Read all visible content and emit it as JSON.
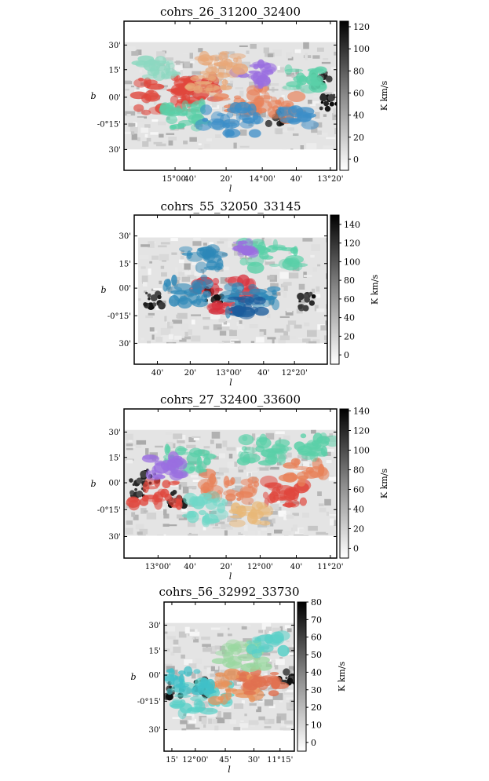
{
  "figure": {
    "colorbar_label": "K km/s",
    "xlabel": "l",
    "ylabel": "b"
  },
  "chart_data": [
    {
      "type": "heatmap",
      "title": "cohrs_26_31200_32400",
      "xlabel": "l",
      "ylabel": "b",
      "x_ticks": [
        "15°00'",
        "40'",
        "20'",
        "14°00'",
        "40'",
        "13°20'"
      ],
      "y_ticks": [
        "30'",
        "15'",
        "00'",
        "-0°15'",
        "30'"
      ],
      "colorbar": {
        "label": "K km/s",
        "ticks": [
          0,
          20,
          40,
          60,
          80,
          100,
          120
        ],
        "range": [
          -10,
          125
        ]
      },
      "overlay_colors": [
        "#e0463c",
        "#e8825a",
        "#5ad0a8",
        "#3c8ec8",
        "#9a6ee0",
        "#e8a878",
        "#8cd8c0"
      ]
    },
    {
      "type": "heatmap",
      "title": "cohrs_55_32050_33145",
      "xlabel": "l",
      "ylabel": "b",
      "x_ticks": [
        "40'",
        "20'",
        "13°00'",
        "40'",
        "12°20'"
      ],
      "y_ticks": [
        "30'",
        "15'",
        "00'",
        "-0°15'",
        "30'"
      ],
      "colorbar": {
        "label": "K km/s",
        "ticks": [
          0,
          20,
          40,
          60,
          80,
          100,
          120,
          140
        ],
        "range": [
          -10,
          150
        ]
      },
      "overlay_colors": [
        "#d8303c",
        "#2c88b8",
        "#5ad0a8",
        "#9a6ee0",
        "#1c5c9c"
      ]
    },
    {
      "type": "heatmap",
      "title": "cohrs_27_32400_33600",
      "xlabel": "l",
      "ylabel": "b",
      "x_ticks": [
        "13°00'",
        "40'",
        "20'",
        "12°00'",
        "40'",
        "11°20'"
      ],
      "y_ticks": [
        "30'",
        "15'",
        "00'",
        "-0°15'",
        "30'"
      ],
      "colorbar": {
        "label": "K km/s",
        "ticks": [
          0,
          20,
          40,
          60,
          80,
          100,
          120,
          140
        ],
        "range": [
          -10,
          142
        ]
      },
      "overlay_colors": [
        "#e0463c",
        "#e8825a",
        "#5ad0a8",
        "#9a6ee0",
        "#e8b878",
        "#70d8c8"
      ]
    },
    {
      "type": "heatmap",
      "title": "cohrs_56_32992_33730",
      "xlabel": "l",
      "ylabel": "b",
      "x_ticks": [
        "15'",
        "12°00'",
        "45'",
        "30'",
        "11°15'"
      ],
      "y_ticks": [
        "30'",
        "15'",
        "00'",
        "-0°15'",
        "30'"
      ],
      "colorbar": {
        "label": "K km/s",
        "ticks": [
          0,
          10,
          20,
          30,
          40,
          50,
          60,
          70,
          80
        ],
        "range": [
          -5,
          80
        ]
      },
      "overlay_colors": [
        "#5ad0c8",
        "#e8925a",
        "#e07050",
        "#9ad8a0",
        "#40c0c8"
      ]
    }
  ]
}
